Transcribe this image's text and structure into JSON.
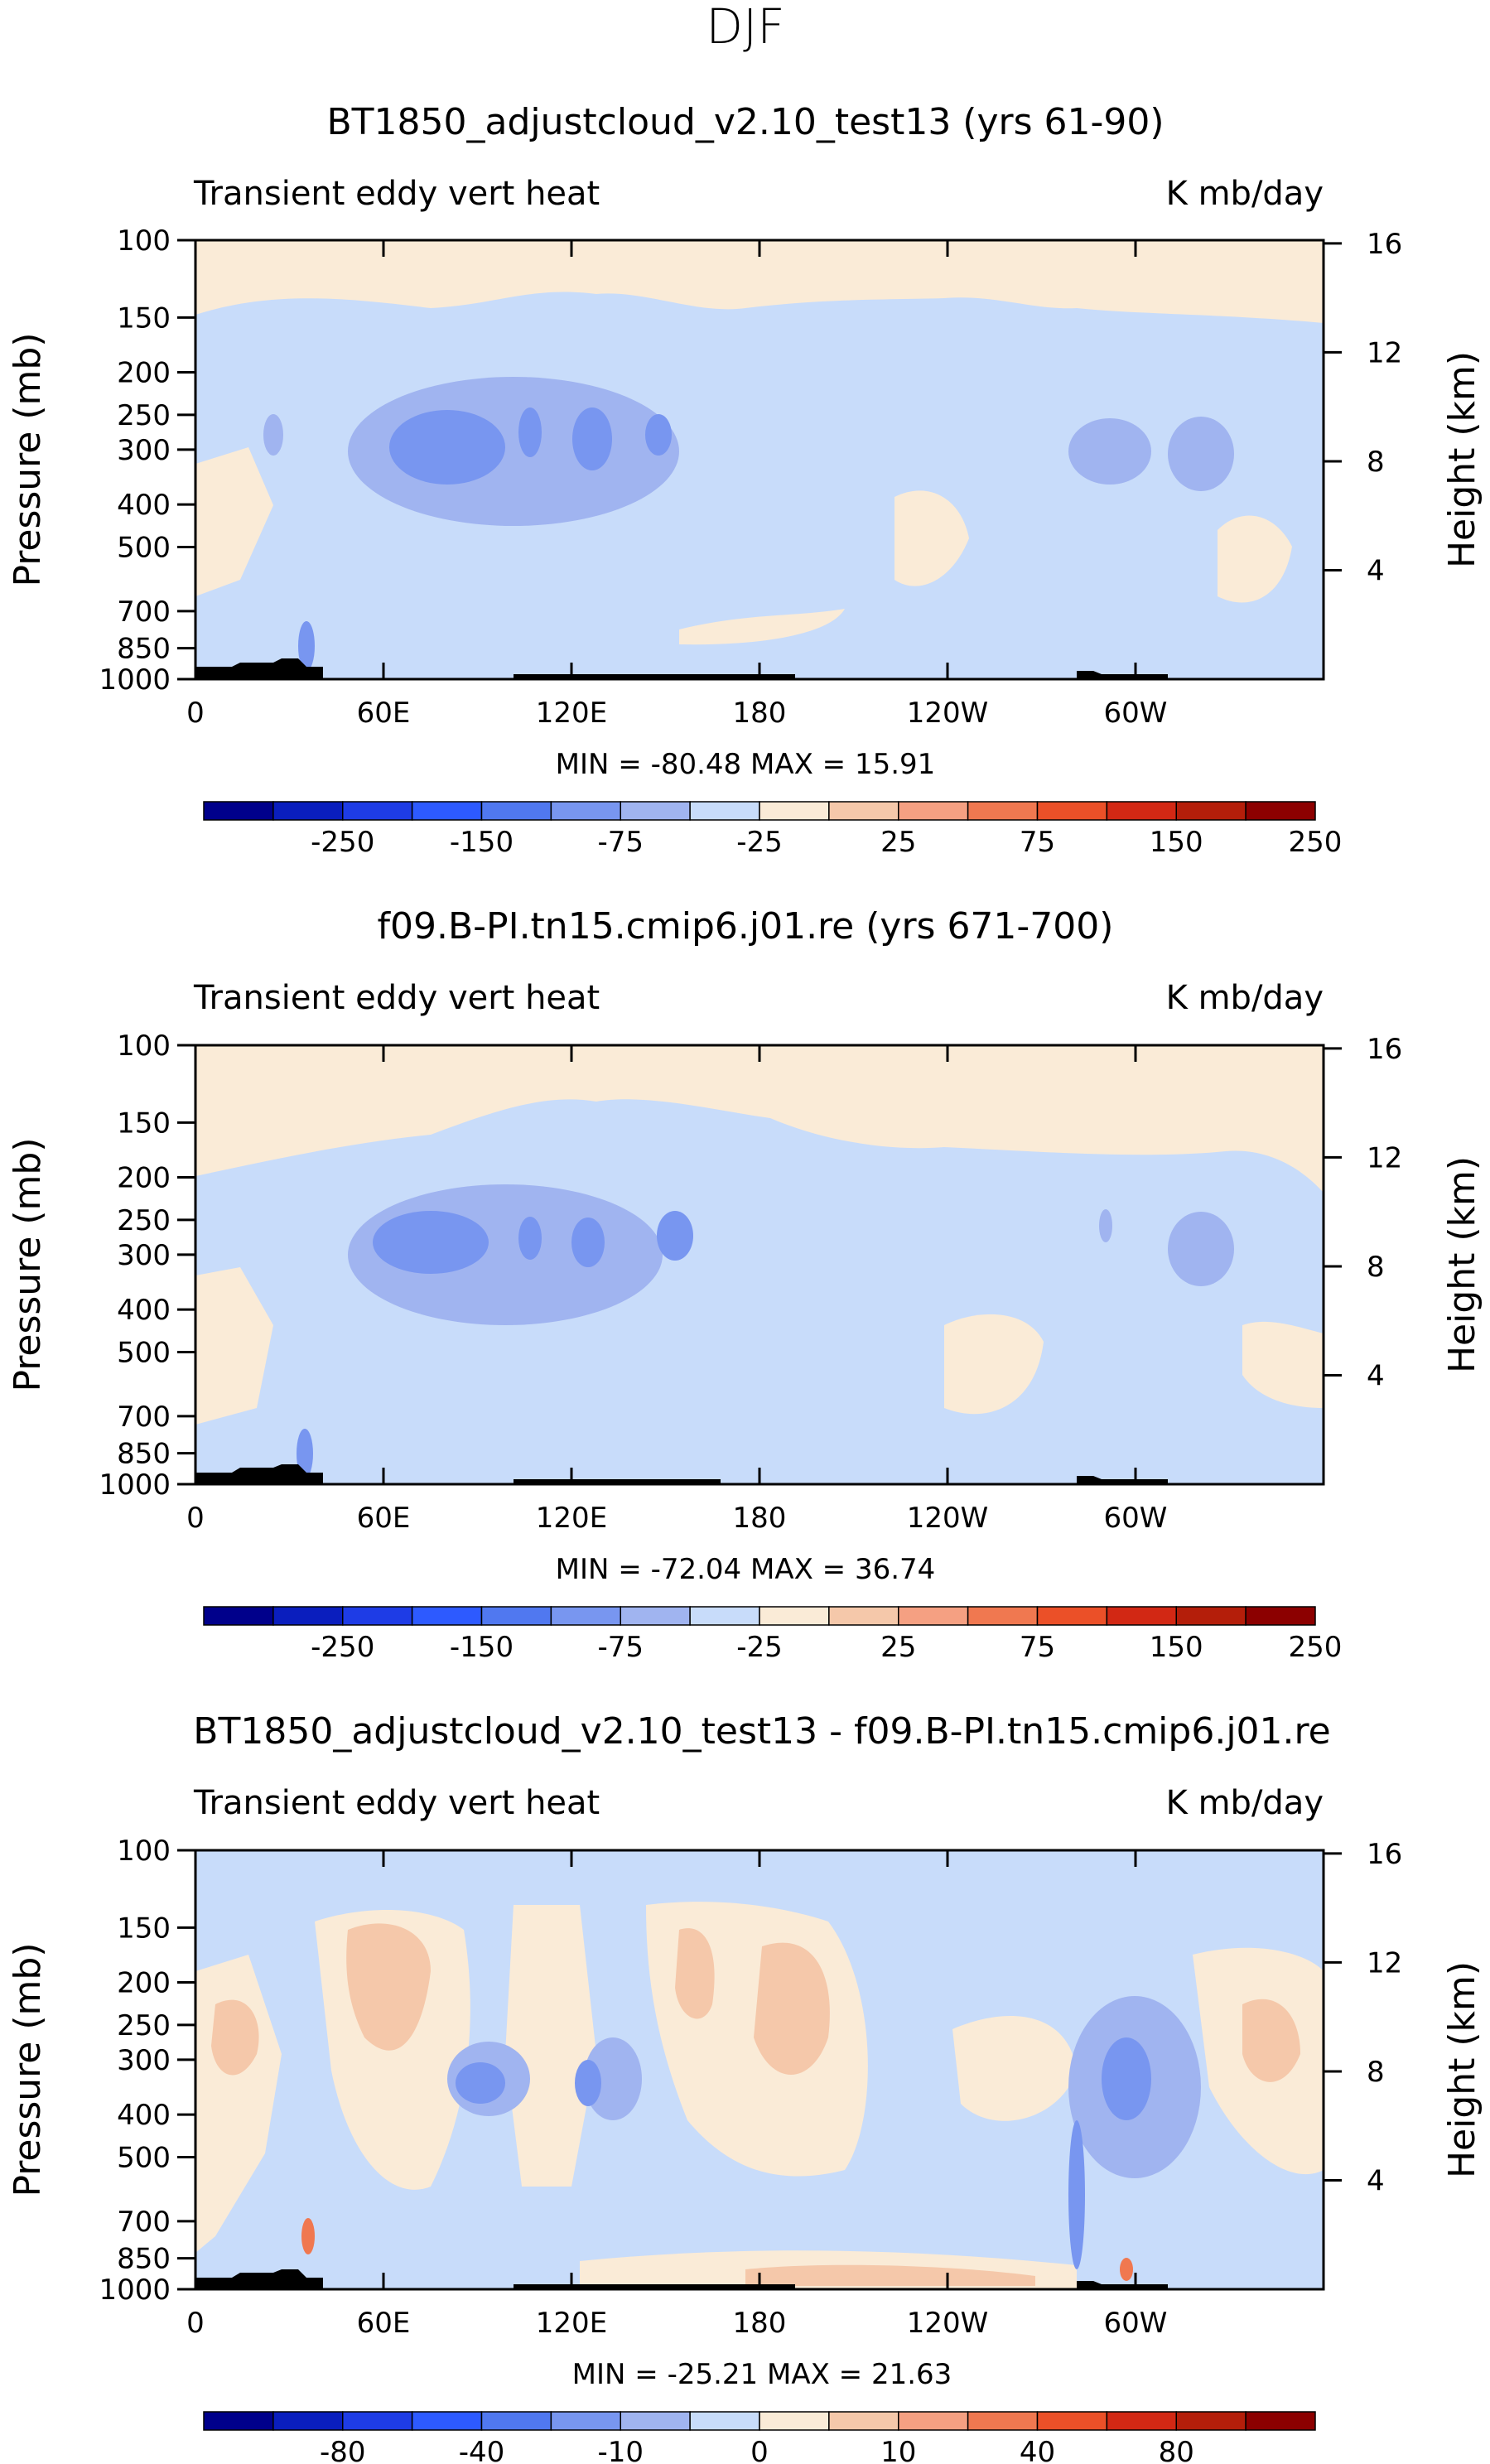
{
  "figure_title": "DJF",
  "chart_data": [
    {
      "type": "heatmap",
      "title": "BT1850_adjustcloud_v2.10_test13 (yrs 61-90)",
      "left_label": "Transient eddy vert heat",
      "right_label": "K mb/day",
      "xlabel": "",
      "ylabel": "Pressure (mb)",
      "y2label": "Height (km)",
      "xticks": [
        "0",
        "60E",
        "120E",
        "180",
        "120W",
        "60W"
      ],
      "xtick_values": [
        0,
        60,
        120,
        180,
        240,
        300
      ],
      "xlim": [
        0,
        360
      ],
      "yticks": [
        "100",
        "150",
        "200",
        "250",
        "300",
        "400",
        "500",
        "700",
        "850",
        "1000"
      ],
      "ytick_values": [
        100,
        150,
        200,
        250,
        300,
        400,
        500,
        700,
        850,
        1000
      ],
      "ylim": [
        1000,
        100
      ],
      "y2ticks": [
        "4",
        "8",
        "12",
        "16"
      ],
      "y2tick_values": [
        4,
        8,
        12,
        16
      ],
      "stats": "MIN = -80.48   MAX =  15.91",
      "colorbar_labels": [
        "-250",
        "-150",
        "-75",
        "-25",
        "25",
        "75",
        "150",
        "250"
      ],
      "colorbar_label_boundaries": [
        2,
        4,
        6,
        8,
        10,
        12,
        14,
        16
      ],
      "colorbar_colors": [
        "#00008b",
        "#0a1ebe",
        "#1e3ce6",
        "#2d5aff",
        "#5078f0",
        "#7896f0",
        "#a0b4f0",
        "#c8dcfa",
        "#faebd7",
        "#f5c8aa",
        "#f5a082",
        "#f07850",
        "#eb5028",
        "#d22814",
        "#b41e0a",
        "#8c0000"
      ]
    },
    {
      "type": "heatmap",
      "title": "f09.B-PI.tn15.cmip6.j01.re (yrs 671-700)",
      "left_label": "Transient eddy vert heat",
      "right_label": "K mb/day",
      "xlabel": "",
      "ylabel": "Pressure (mb)",
      "y2label": "Height (km)",
      "xticks": [
        "0",
        "60E",
        "120E",
        "180",
        "120W",
        "60W"
      ],
      "xtick_values": [
        0,
        60,
        120,
        180,
        240,
        300
      ],
      "xlim": [
        0,
        360
      ],
      "yticks": [
        "100",
        "150",
        "200",
        "250",
        "300",
        "400",
        "500",
        "700",
        "850",
        "1000"
      ],
      "ytick_values": [
        100,
        150,
        200,
        250,
        300,
        400,
        500,
        700,
        850,
        1000
      ],
      "ylim": [
        1000,
        100
      ],
      "y2ticks": [
        "4",
        "8",
        "12",
        "16"
      ],
      "y2tick_values": [
        4,
        8,
        12,
        16
      ],
      "stats": "MIN = -72.04   MAX =  36.74",
      "colorbar_labels": [
        "-250",
        "-150",
        "-75",
        "-25",
        "25",
        "75",
        "150",
        "250"
      ],
      "colorbar_label_boundaries": [
        2,
        4,
        6,
        8,
        10,
        12,
        14,
        16
      ],
      "colorbar_colors": [
        "#00008b",
        "#0a1ebe",
        "#1e3ce6",
        "#2d5aff",
        "#5078f0",
        "#7896f0",
        "#a0b4f0",
        "#c8dcfa",
        "#faebd7",
        "#f5c8aa",
        "#f5a082",
        "#f07850",
        "#eb5028",
        "#d22814",
        "#b41e0a",
        "#8c0000"
      ]
    },
    {
      "type": "heatmap",
      "title": "BT1850_adjustcloud_v2.10_test13 - f09.B-PI.tn15.cmip6.j01.re",
      "left_label": "Transient eddy vert heat",
      "right_label": "K mb/day",
      "xlabel": "",
      "ylabel": "Pressure (mb)",
      "y2label": "Height (km)",
      "xticks": [
        "0",
        "60E",
        "120E",
        "180",
        "120W",
        "60W"
      ],
      "xtick_values": [
        0,
        60,
        120,
        180,
        240,
        300
      ],
      "xlim": [
        0,
        360
      ],
      "yticks": [
        "100",
        "150",
        "200",
        "250",
        "300",
        "400",
        "500",
        "700",
        "850",
        "1000"
      ],
      "ytick_values": [
        100,
        150,
        200,
        250,
        300,
        400,
        500,
        700,
        850,
        1000
      ],
      "ylim": [
        1000,
        100
      ],
      "y2ticks": [
        "4",
        "8",
        "12",
        "16"
      ],
      "y2tick_values": [
        4,
        8,
        12,
        16
      ],
      "stats": "MIN = -25.21   MAX =  21.63",
      "colorbar_labels": [
        "-80",
        "-40",
        "-10",
        "0",
        "10",
        "40",
        "80"
      ],
      "colorbar_label_boundaries": [
        2,
        4,
        6,
        8,
        10,
        12,
        14
      ],
      "colorbar_colors": [
        "#00008b",
        "#0a1ebe",
        "#1e3ce6",
        "#2d5aff",
        "#5078f0",
        "#7896f0",
        "#a0b4f0",
        "#c8dcfa",
        "#faebd7",
        "#f5c8aa",
        "#f5a082",
        "#f07850",
        "#eb5028",
        "#d22814",
        "#b41e0a",
        "#8c0000"
      ]
    }
  ]
}
